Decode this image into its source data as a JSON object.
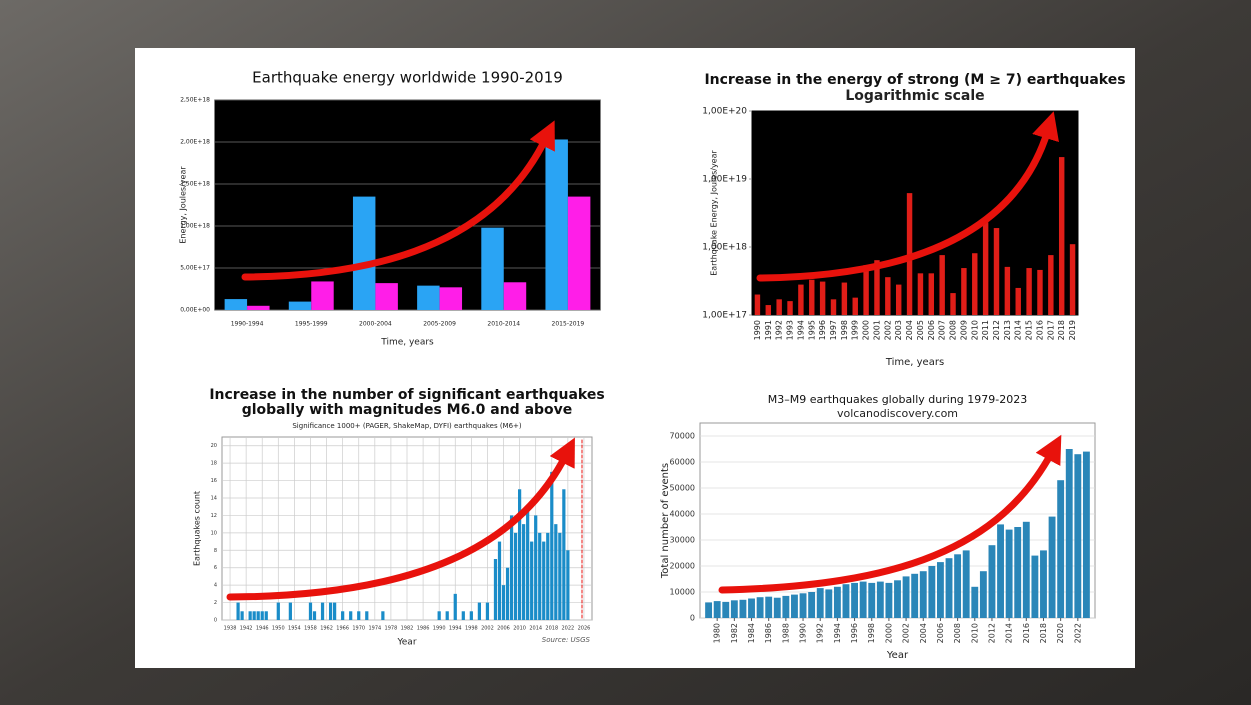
{
  "chart_data": [
    {
      "type": "bar",
      "title": [
        "Earthquake energy worldwide 1990-2019"
      ],
      "x_label": "Time, years",
      "y_label": "Energy, Joules/year",
      "categories": [
        "1990-1994",
        "1995-1999",
        "2000-2004",
        "2005-2009",
        "2010-2014",
        "2015-2019"
      ],
      "series": [
        {
          "color": "#2aa4f4",
          "values": [
            1.3e+17,
            1e+17,
            1.35e+18,
            2.9e+17,
            9.8e+17,
            2.03e+18
          ]
        },
        {
          "color": "#ff1ee8",
          "values": [
            5e+16,
            3.4e+17,
            3.2e+17,
            2.7e+17,
            3.3e+17,
            1.35e+18
          ]
        }
      ],
      "ylim": [
        0,
        2.5e+18
      ],
      "yticks": [
        {
          "value": 0,
          "label": "0,00E+00"
        },
        {
          "value": 5e+17,
          "label": "5,00E+17"
        },
        {
          "value": 1e+18,
          "label": "1,00E+18"
        },
        {
          "value": 1.5e+18,
          "label": "1,50E+18"
        },
        {
          "value": 2e+18,
          "label": "2,00E+18"
        },
        {
          "value": 2.5e+18,
          "label": "2,50E+18"
        }
      ],
      "grid": true
    },
    {
      "type": "bar",
      "title": [
        "Increase in the energy of strong  (M ≥ 7) earthquakes"
      ],
      "subtitle": "Logarithmic scale",
      "x_label": "Time, years",
      "y_label": "Earthquake Energy, Joules/year",
      "categories": [
        "1990",
        "1991",
        "1992",
        "1993",
        "1994",
        "1995",
        "1996",
        "1997",
        "1998",
        "1999",
        "2000",
        "2001",
        "2002",
        "2003",
        "2004",
        "2005",
        "2006",
        "2007",
        "2008",
        "2009",
        "2010",
        "2011",
        "2012",
        "2013",
        "2014",
        "2015",
        "2016",
        "2017",
        "2018",
        "2019"
      ],
      "series": [
        {
          "color": "#e01e18",
          "values": [
            2e+17,
            1.4e+17,
            1.7e+17,
            1.6e+17,
            2.8e+17,
            3.3e+17,
            3.1e+17,
            1.7e+17,
            3e+17,
            1.8e+17,
            5.4e+17,
            6.4e+17,
            3.6e+17,
            2.8e+17,
            6.2e+18,
            4.1e+17,
            4.1e+17,
            7.6e+17,
            2.1e+17,
            4.9e+17,
            8.1e+17,
            2.3e+18,
            1.9e+18,
            5.1e+17,
            2.5e+17,
            4.9e+17,
            4.6e+17,
            7.6e+17,
            2.1e+19,
            1.1e+18
          ]
        }
      ],
      "log_scale": true,
      "ylim": [
        1e+17,
        1e+20
      ],
      "yticks": [
        {
          "value": 1e+17,
          "label": "1,00E+17"
        },
        {
          "value": 1e+18,
          "label": "1,00E+18"
        },
        {
          "value": 1e+19,
          "label": "1,00E+19"
        },
        {
          "value": 1e+20,
          "label": "1,00E+20"
        }
      ],
      "grid": false
    },
    {
      "type": "bar",
      "title": [
        "Increase in the number of significant earthquakes",
        "globally with magnitudes M6.0 and above"
      ],
      "subtitle": "Significance 1000+ (PAGER, ShakeMap, DYFI) earthquakes (M6+)",
      "note": "Source: USGS",
      "x_label": "Year",
      "y_label": "Earthquakes count",
      "x": [
        1940,
        1941,
        1943,
        1944,
        1945,
        1946,
        1947,
        1950,
        1953,
        1958,
        1959,
        1961,
        1963,
        1964,
        1966,
        1968,
        1970,
        1972,
        1976,
        1990,
        1992,
        1994,
        1996,
        1998,
        2000,
        2002,
        2004,
        2005,
        2006,
        2007,
        2008,
        2009,
        2010,
        2011,
        2012,
        2013,
        2014,
        2015,
        2016,
        2017,
        2018,
        2019,
        2020,
        2021,
        2022
      ],
      "series": [
        {
          "color": "#1a8cc8",
          "values": [
            2,
            1,
            1,
            1,
            1,
            1,
            1,
            2,
            2,
            2,
            1,
            2,
            2,
            2,
            1,
            1,
            1,
            1,
            1,
            1,
            1,
            3,
            1,
            1,
            2,
            2,
            7,
            9,
            4,
            6,
            12,
            10,
            15,
            11,
            13,
            9,
            12,
            10,
            9,
            10,
            17,
            11,
            10,
            15,
            8
          ]
        }
      ],
      "xlim": [
        1936,
        2028
      ],
      "xticks": [
        1938,
        1942,
        1946,
        1950,
        1954,
        1958,
        1962,
        1966,
        1970,
        1974,
        1978,
        1982,
        1986,
        1990,
        1994,
        1998,
        2002,
        2006,
        2010,
        2014,
        2018,
        2022,
        2026
      ],
      "ylim": [
        0,
        21
      ],
      "yticks": [
        0,
        2,
        4,
        6,
        8,
        10,
        12,
        14,
        16,
        18,
        20
      ],
      "grid": true
    },
    {
      "type": "bar",
      "title": [
        "M3–M9 earthquakes globally during 1979-2023"
      ],
      "subtitle": "volcanodiscovery.com",
      "x_label": "Year",
      "y_label": "Total number of events",
      "x": [
        1979,
        1980,
        1981,
        1982,
        1983,
        1984,
        1985,
        1986,
        1987,
        1988,
        1989,
        1990,
        1991,
        1992,
        1993,
        1994,
        1995,
        1996,
        1997,
        1998,
        1999,
        2000,
        2001,
        2002,
        2003,
        2004,
        2005,
        2006,
        2007,
        2008,
        2009,
        2010,
        2011,
        2012,
        2013,
        2014,
        2015,
        2016,
        2017,
        2018,
        2019,
        2020,
        2021,
        2022,
        2023
      ],
      "series": [
        {
          "color": "#2a86b8",
          "values": [
            6000,
            6500,
            6200,
            6800,
            7000,
            7500,
            8000,
            8200,
            7800,
            8500,
            9000,
            9500,
            10000,
            11500,
            11000,
            12000,
            13000,
            13500,
            14000,
            13500,
            14000,
            13500,
            14500,
            16000,
            17000,
            18000,
            20000,
            21500,
            23000,
            24500,
            26000,
            12000,
            18000,
            28000,
            36000,
            34000,
            35000,
            37000,
            24000,
            26000,
            39000,
            53000,
            65000,
            63000,
            64000
          ]
        }
      ],
      "xlim": [
        1978,
        2024
      ],
      "xticks": [
        1980,
        1982,
        1984,
        1986,
        1988,
        1990,
        1992,
        1994,
        1996,
        1998,
        2000,
        2002,
        2004,
        2006,
        2008,
        2010,
        2012,
        2014,
        2016,
        2018,
        2020,
        2022
      ],
      "ylim": [
        0,
        75000
      ],
      "yticks": [
        0,
        10000,
        20000,
        30000,
        40000,
        50000,
        60000,
        70000
      ],
      "grid": true
    }
  ]
}
